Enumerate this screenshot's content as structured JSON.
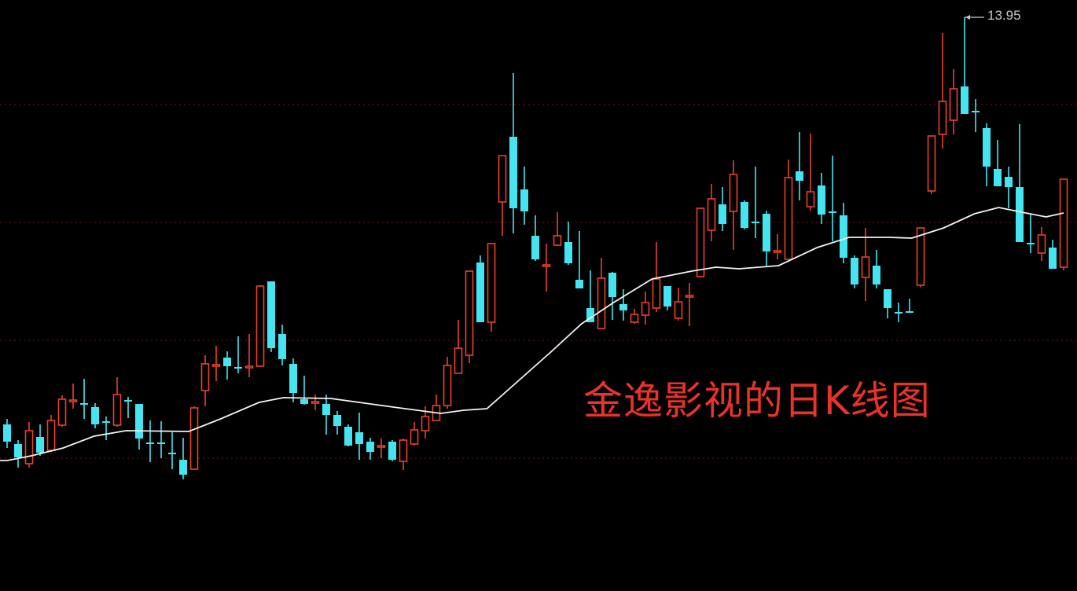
{
  "chart_data": {
    "type": "candlestick",
    "title": "金逸影视的日K线图",
    "xlabel": "",
    "ylabel": "",
    "ylim": [
      6.65,
      14.17
    ],
    "grid": true,
    "gridlines": [
      12.84,
      11.34,
      9.84,
      8.34
    ],
    "max_label": "13.95",
    "max_value": 13.95,
    "max_candle_index": 87,
    "colors": {
      "background": "#000000",
      "up": "#e8412c",
      "down": "#44e4f0",
      "ma": "#f2f2f2",
      "grid": "#6a1c12",
      "title": "#e8322a",
      "label": "#c8c8c8"
    },
    "candle_format": [
      "open",
      "high",
      "low",
      "close"
    ],
    "candles": [
      [
        8.77,
        8.84,
        8.47,
        8.55
      ],
      [
        8.52,
        8.57,
        8.22,
        8.35
      ],
      [
        8.27,
        8.8,
        8.22,
        8.69
      ],
      [
        8.61,
        8.77,
        8.37,
        8.41
      ],
      [
        8.44,
        8.89,
        8.42,
        8.82
      ],
      [
        8.76,
        9.14,
        8.74,
        9.09
      ],
      [
        9.06,
        9.29,
        8.97,
        9.08
      ],
      [
        9.04,
        9.35,
        8.84,
        9.02
      ],
      [
        8.99,
        9.04,
        8.72,
        8.77
      ],
      [
        8.81,
        8.87,
        8.57,
        8.79
      ],
      [
        8.76,
        9.37,
        8.74,
        9.15
      ],
      [
        9.08,
        9.12,
        8.85,
        9.06
      ],
      [
        9.03,
        9.03,
        8.45,
        8.59
      ],
      [
        8.54,
        8.82,
        8.29,
        8.52
      ],
      [
        8.54,
        8.81,
        8.34,
        8.52
      ],
      [
        8.41,
        8.67,
        8.2,
        8.39
      ],
      [
        8.32,
        8.6,
        8.07,
        8.13
      ],
      [
        8.2,
        9.0,
        8.19,
        8.98
      ],
      [
        9.2,
        9.65,
        9.0,
        9.54
      ],
      [
        9.51,
        9.77,
        9.32,
        9.53
      ],
      [
        9.62,
        9.7,
        9.34,
        9.51
      ],
      [
        9.5,
        9.89,
        9.42,
        9.48
      ],
      [
        9.49,
        9.92,
        9.37,
        9.51
      ],
      [
        9.51,
        10.54,
        9.5,
        10.53
      ],
      [
        10.59,
        10.59,
        9.69,
        9.74
      ],
      [
        9.92,
        10.04,
        9.52,
        9.6
      ],
      [
        9.54,
        9.61,
        9.05,
        9.17
      ],
      [
        9.09,
        9.39,
        9.02,
        9.03
      ],
      [
        9.04,
        9.15,
        8.95,
        9.06
      ],
      [
        9.03,
        9.15,
        8.64,
        8.89
      ],
      [
        8.89,
        8.94,
        8.64,
        8.75
      ],
      [
        8.74,
        8.77,
        8.49,
        8.5
      ],
      [
        8.67,
        8.92,
        8.32,
        8.52
      ],
      [
        8.55,
        8.6,
        8.32,
        8.42
      ],
      [
        8.48,
        8.59,
        8.34,
        8.5
      ],
      [
        8.55,
        8.57,
        8.3,
        8.32
      ],
      [
        8.3,
        8.59,
        8.19,
        8.57
      ],
      [
        8.52,
        8.8,
        8.5,
        8.7
      ],
      [
        8.69,
        9.0,
        8.59,
        8.87
      ],
      [
        8.82,
        9.15,
        8.82,
        9.01
      ],
      [
        9.01,
        9.63,
        8.97,
        9.52
      ],
      [
        9.42,
        10.1,
        9.42,
        9.74
      ],
      [
        9.65,
        10.72,
        9.55,
        10.72
      ],
      [
        10.83,
        10.92,
        10.07,
        10.07
      ],
      [
        10.07,
        11.07,
        9.95,
        11.07
      ],
      [
        11.6,
        12.19,
        11.17,
        12.19
      ],
      [
        12.43,
        13.24,
        11.2,
        11.52
      ],
      [
        11.76,
        12.05,
        11.31,
        11.48
      ],
      [
        11.17,
        11.43,
        10.85,
        10.87
      ],
      [
        10.78,
        11.07,
        10.46,
        10.8
      ],
      [
        11.05,
        11.47,
        11.04,
        11.17
      ],
      [
        11.09,
        11.35,
        10.8,
        10.82
      ],
      [
        10.61,
        11.23,
        10.5,
        10.5
      ],
      [
        10.25,
        10.73,
        10.07,
        10.07
      ],
      [
        9.99,
        10.89,
        9.99,
        10.63
      ],
      [
        10.7,
        10.71,
        10.1,
        10.39
      ],
      [
        10.3,
        10.49,
        10.09,
        10.22
      ],
      [
        10.07,
        10.24,
        10.05,
        10.17
      ],
      [
        10.16,
        10.46,
        10.04,
        10.32
      ],
      [
        10.25,
        11.09,
        10.2,
        10.62
      ],
      [
        10.53,
        10.53,
        10.22,
        10.27
      ],
      [
        10.12,
        10.51,
        10.09,
        10.33
      ],
      [
        10.39,
        10.57,
        10.02,
        10.41
      ],
      [
        10.65,
        11.52,
        10.64,
        11.52
      ],
      [
        11.24,
        11.83,
        11.1,
        11.64
      ],
      [
        11.57,
        11.79,
        11.23,
        11.32
      ],
      [
        11.48,
        12.13,
        10.99,
        11.95
      ],
      [
        11.6,
        11.62,
        11.25,
        11.27
      ],
      [
        11.35,
        12.05,
        11.14,
        11.33
      ],
      [
        11.45,
        11.49,
        10.79,
        10.97
      ],
      [
        10.96,
        11.19,
        10.87,
        10.98
      ],
      [
        10.87,
        12.14,
        10.87,
        11.91
      ],
      [
        11.99,
        12.49,
        11.62,
        11.87
      ],
      [
        11.54,
        12.47,
        11.49,
        11.73
      ],
      [
        11.81,
        11.97,
        11.32,
        11.44
      ],
      [
        11.48,
        12.19,
        11.1,
        11.46
      ],
      [
        11.43,
        11.59,
        10.82,
        10.89
      ],
      [
        10.89,
        10.92,
        10.5,
        10.55
      ],
      [
        10.64,
        11.27,
        10.34,
        10.9
      ],
      [
        10.79,
        10.99,
        10.5,
        10.55
      ],
      [
        10.49,
        10.49,
        10.12,
        10.25
      ],
      [
        10.2,
        10.32,
        10.07,
        10.18
      ],
      [
        10.21,
        10.37,
        10.19,
        10.19
      ],
      [
        10.54,
        11.27,
        10.52,
        11.27
      ],
      [
        11.74,
        12.44,
        11.7,
        12.44
      ],
      [
        12.46,
        13.75,
        12.28,
        12.88
      ],
      [
        12.64,
        13.29,
        12.46,
        13.04
      ],
      [
        13.07,
        13.95,
        12.72,
        12.72
      ],
      [
        12.76,
        12.91,
        12.49,
        12.74
      ],
      [
        12.54,
        12.6,
        11.8,
        12.05
      ],
      [
        12.02,
        12.39,
        11.8,
        11.8
      ],
      [
        11.92,
        12.05,
        11.52,
        11.79
      ],
      [
        11.79,
        12.59,
        11.09,
        11.09
      ],
      [
        11.08,
        11.44,
        10.95,
        11.06
      ],
      [
        10.95,
        11.28,
        10.85,
        11.18
      ],
      [
        11.02,
        11.12,
        10.75,
        10.75
      ],
      [
        10.77,
        11.89,
        10.73,
        11.89
      ]
    ],
    "moving_average": [
      [
        0,
        8.31
      ],
      [
        2.2,
        8.37
      ],
      [
        5.1,
        8.47
      ],
      [
        7.9,
        8.62
      ],
      [
        10.8,
        8.69
      ],
      [
        16.5,
        8.68
      ],
      [
        19.4,
        8.84
      ],
      [
        22.9,
        9.05
      ],
      [
        25.1,
        9.11
      ],
      [
        29.4,
        9.1
      ],
      [
        35.1,
        8.99
      ],
      [
        39.4,
        8.91
      ],
      [
        41.5,
        8.95
      ],
      [
        43.6,
        8.97
      ],
      [
        46.5,
        9.33
      ],
      [
        49.4,
        9.69
      ],
      [
        52.2,
        10.05
      ],
      [
        55.1,
        10.32
      ],
      [
        58.6,
        10.62
      ],
      [
        62.2,
        10.72
      ],
      [
        64.4,
        10.77
      ],
      [
        66.5,
        10.75
      ],
      [
        70.1,
        10.79
      ],
      [
        73.6,
        11.02
      ],
      [
        76.5,
        11.15
      ],
      [
        80.1,
        11.15
      ],
      [
        82.2,
        11.14
      ],
      [
        85.1,
        11.27
      ],
      [
        87.9,
        11.45
      ],
      [
        90.1,
        11.53
      ],
      [
        92.2,
        11.47
      ],
      [
        94.4,
        11.41
      ],
      [
        96,
        11.46
      ]
    ]
  }
}
